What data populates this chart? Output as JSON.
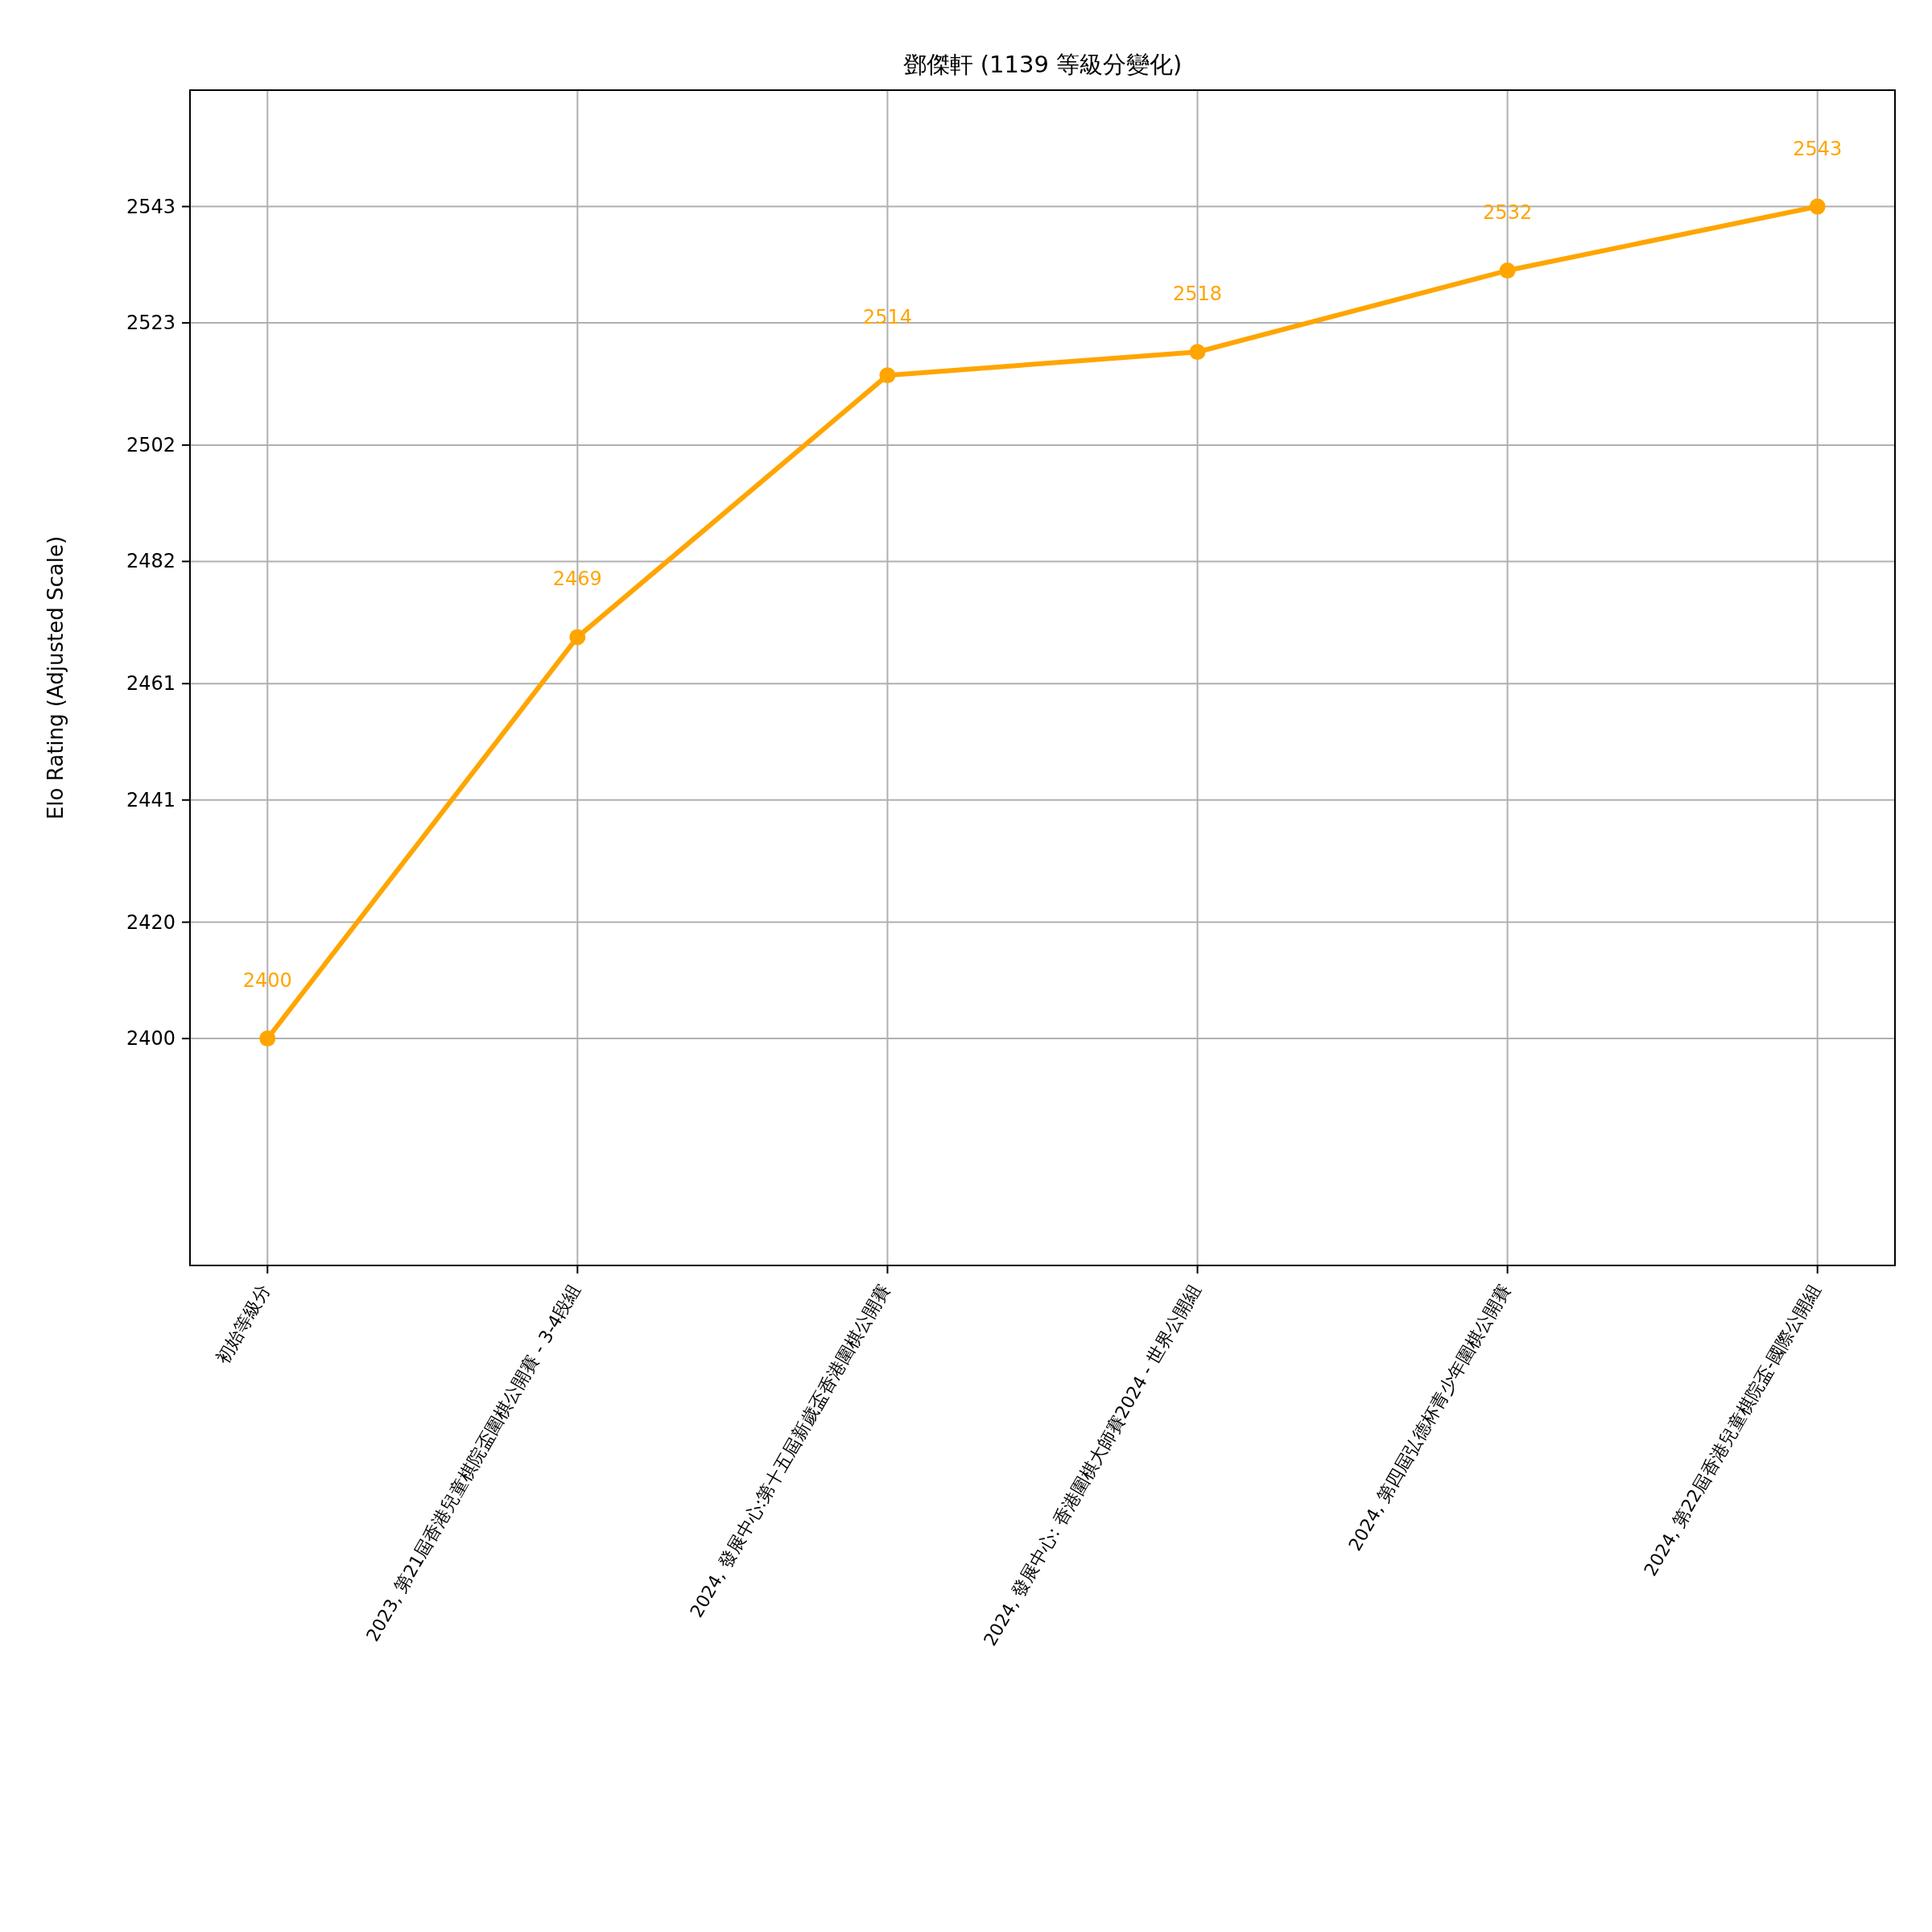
{
  "chart_data": {
    "type": "line",
    "title": "鄧傑軒 (1139 等級分變化)",
    "ylabel": "Elo Rating (Adjusted Scale)",
    "categories": [
      "初始等級分",
      "2023, 第21屆香港兒童棋院盃圍棋公開賽 - 3-4段組",
      "2024, 發展中心:第十五屆新歲盃香港圍棋公開賽",
      "2024, 發展中心: 香港圍棋大師賽2024 - 世界公開組",
      "2024, 第四屆弘德杯青少年圍棋公開賽",
      "2024, 第22屆香港兒童棋院盃-國際公開組"
    ],
    "series": [
      {
        "color": "#ffa500",
        "values": [
          2400,
          2469,
          2514,
          2518,
          2532,
          2543
        ]
      }
    ],
    "ylim": [
      2361,
      2563
    ],
    "yticks": [
      2400,
      2420,
      2441,
      2461,
      2482,
      2502,
      2523,
      2543
    ],
    "grid": true,
    "marker": "circle",
    "line_style": "solid",
    "data_labels": true
  }
}
